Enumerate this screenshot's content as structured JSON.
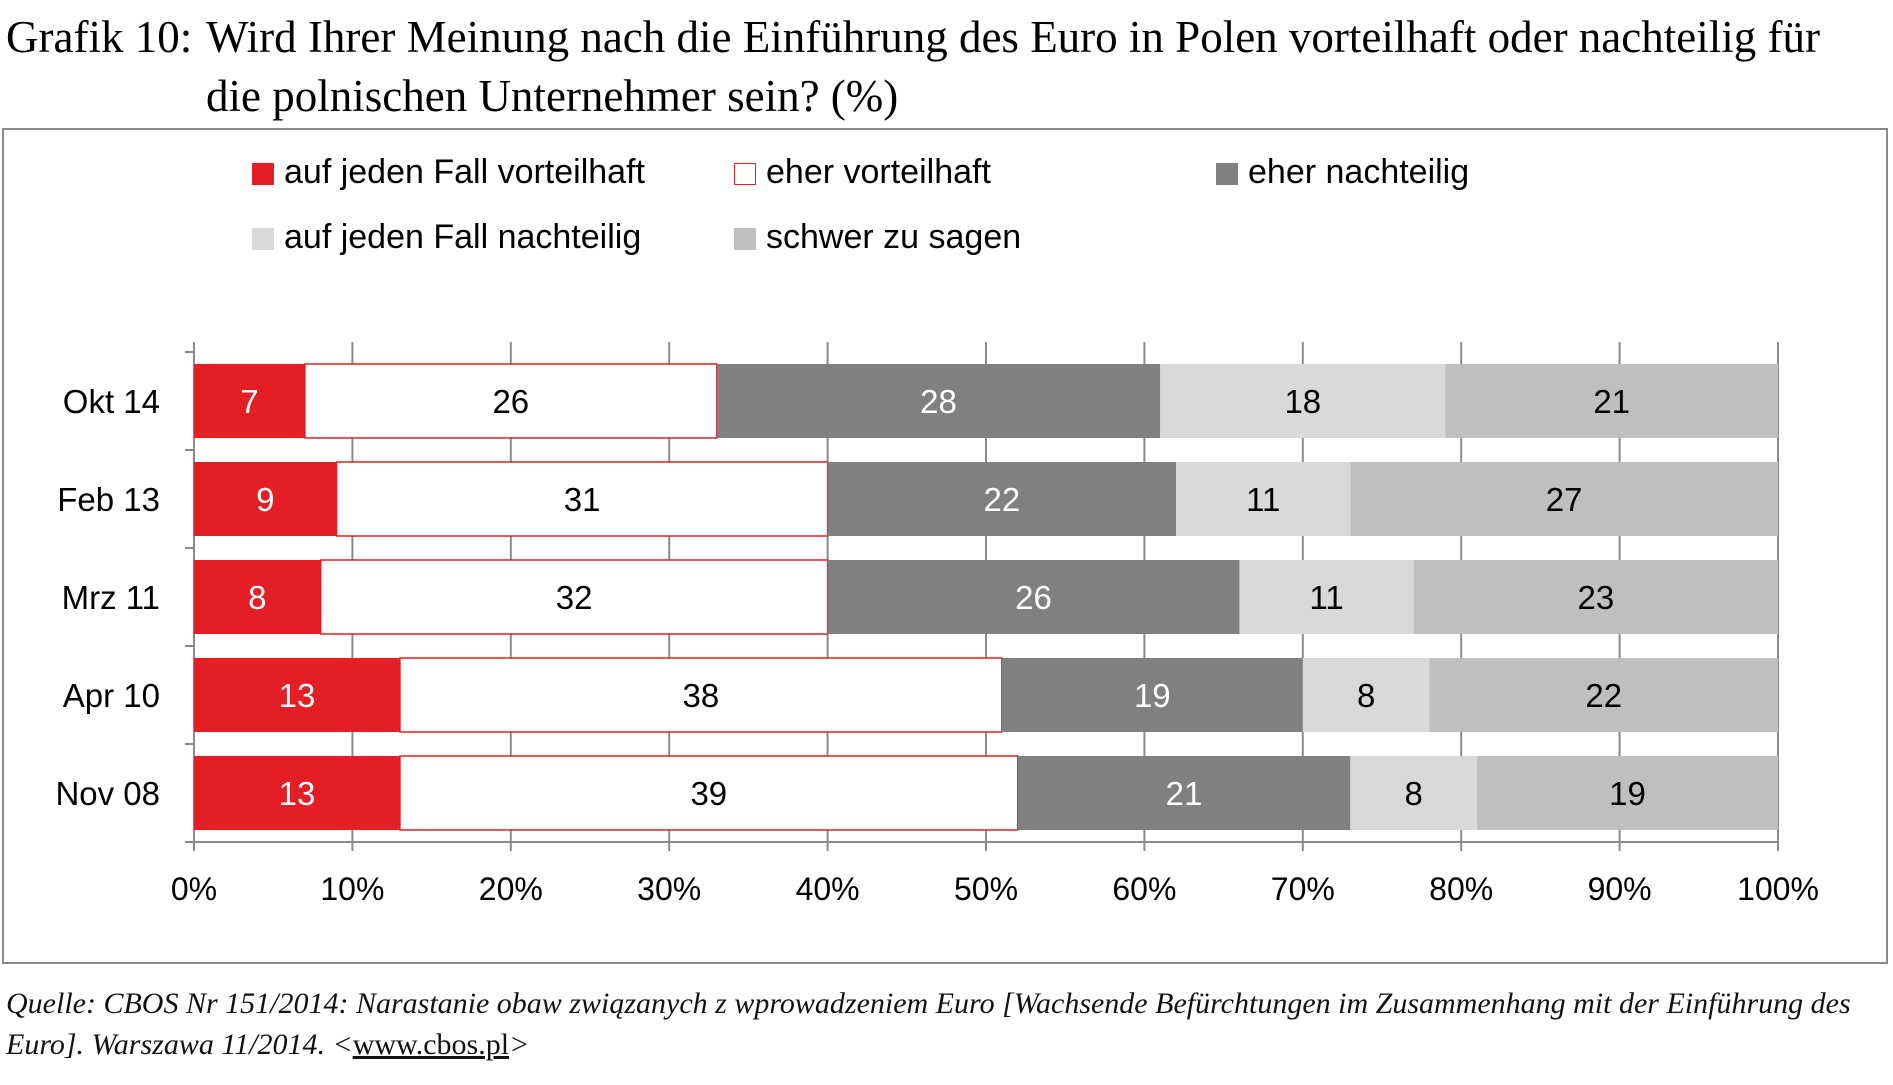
{
  "header": {
    "label": "Grafik 10:",
    "title": "Wird Ihrer Meinung nach die Einführung des Euro in Polen vorteilhaft oder nachteilig für die polnischen Unternehmer sein? (%)"
  },
  "chart_data": {
    "type": "bar",
    "orientation": "horizontal",
    "stacked": true,
    "categories": [
      "Okt 14",
      "Feb 13",
      "Mrz 11",
      "Apr 10",
      "Nov 08"
    ],
    "series": [
      {
        "name": "auf jeden Fall vorteilhaft",
        "color": "#e31e24",
        "text_color": "#ffffff",
        "values": [
          7,
          9,
          8,
          13,
          13
        ]
      },
      {
        "name": "eher vorteilhaft",
        "color": "#ffffff",
        "border": "#e31e24",
        "text_color": "#000000",
        "values": [
          26,
          31,
          32,
          38,
          39
        ]
      },
      {
        "name": "eher nachteilig",
        "color": "#808080",
        "text_color": "#ffffff",
        "values": [
          28,
          22,
          26,
          19,
          21
        ]
      },
      {
        "name": "auf jeden Fall nachteilig",
        "color": "#d9d9d9",
        "text_color": "#000000",
        "values": [
          18,
          11,
          11,
          8,
          8
        ]
      },
      {
        "name": "schwer zu sagen",
        "color": "#bfbfbf",
        "text_color": "#000000",
        "values": [
          21,
          27,
          23,
          22,
          19
        ]
      }
    ],
    "xlim": [
      0,
      100
    ],
    "xticks": [
      "0%",
      "10%",
      "20%",
      "30%",
      "40%",
      "50%",
      "60%",
      "70%",
      "80%",
      "90%",
      "100%"
    ],
    "legend_position": "top",
    "grid": false
  },
  "source": {
    "text": "Quelle: CBOS Nr 151/2014: Narastanie obaw związanych z wprowadzeniem Euro [Wachsende Befürchtungen im Zusammenhang mit der Einführung des Euro]. Warszawa 11/2014. <",
    "link": "www.cbos.pl",
    "suffix": ">"
  }
}
